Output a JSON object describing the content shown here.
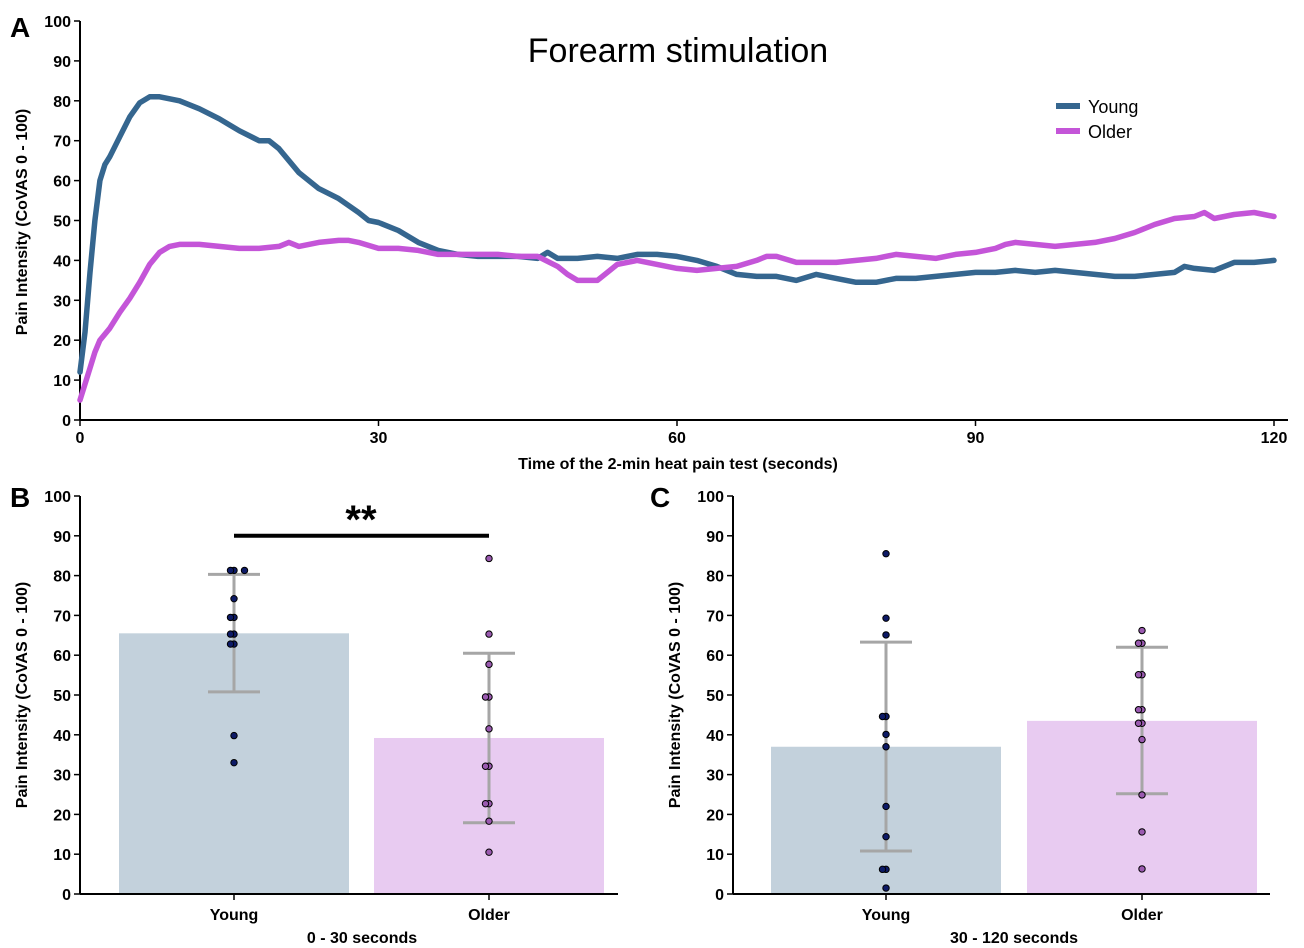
{
  "chart_data": [
    {
      "panel": "A",
      "type": "line",
      "title": "Forearm stimulation",
      "xlabel": "Time of the 2-min heat pain test (seconds)",
      "ylabel": "Pain Intensity (CoVAS 0 - 100)",
      "xlim": [
        0,
        120
      ],
      "ylim": [
        0,
        100
      ],
      "xticks": [
        0,
        30,
        60,
        90,
        120
      ],
      "yticks": [
        0,
        10,
        20,
        30,
        40,
        50,
        60,
        70,
        80,
        90,
        100
      ],
      "legend_position": "top-right",
      "grid": false,
      "series": [
        {
          "name": "Young",
          "color": "#35668f",
          "x": [
            0,
            0.5,
            1,
            1.5,
            2,
            2.5,
            3,
            4,
            5,
            6,
            7,
            8,
            9,
            10,
            12,
            14,
            16,
            18,
            19,
            20,
            22,
            24,
            26,
            28,
            29,
            30,
            32,
            34,
            36,
            38,
            40,
            42,
            44,
            46,
            47,
            48,
            50,
            52,
            54,
            56,
            58,
            60,
            62,
            64,
            66,
            68,
            70,
            72,
            74,
            76,
            78,
            80,
            82,
            84,
            86,
            88,
            90,
            92,
            94,
            96,
            98,
            100,
            102,
            104,
            106,
            108,
            110,
            111,
            112,
            114,
            116,
            118,
            120
          ],
          "y": [
            12,
            22,
            37,
            50,
            60,
            64,
            66,
            71,
            76,
            79.5,
            81,
            81,
            80.5,
            80,
            78,
            75.5,
            72.5,
            70,
            70,
            68,
            62,
            58,
            55.5,
            52,
            50,
            49.5,
            47.5,
            44.5,
            42.5,
            41.5,
            41,
            41,
            41,
            40.5,
            42,
            40.5,
            40.5,
            41,
            40.5,
            41.5,
            41.5,
            41,
            40,
            38.5,
            36.5,
            36,
            36,
            35,
            36.5,
            35.5,
            34.5,
            34.5,
            35.5,
            35.5,
            36,
            36.5,
            37,
            37,
            37.5,
            37,
            37.5,
            37,
            36.5,
            36,
            36,
            36.5,
            37,
            38.5,
            38,
            37.5,
            39.5,
            39.5,
            40
          ]
        },
        {
          "name": "Older",
          "color": "#c455d8",
          "x": [
            0,
            0.5,
            1,
            1.5,
            2,
            3,
            4,
            5,
            6,
            7,
            8,
            9,
            10,
            12,
            14,
            16,
            18,
            20,
            21,
            22,
            24,
            26,
            27,
            28,
            30,
            32,
            34,
            36,
            38,
            40,
            42,
            44,
            46,
            48,
            49,
            50,
            51,
            52,
            53,
            54,
            56,
            58,
            60,
            62,
            64,
            66,
            68,
            69,
            70,
            72,
            74,
            76,
            78,
            80,
            82,
            84,
            86,
            88,
            90,
            92,
            93,
            94,
            96,
            98,
            100,
            102,
            104,
            106,
            108,
            110,
            112,
            113,
            114,
            116,
            118,
            119,
            120
          ],
          "y": [
            5,
            9,
            13,
            17,
            20,
            23,
            27,
            30.5,
            34.5,
            39,
            42,
            43.5,
            44,
            44,
            43.5,
            43,
            43,
            43.5,
            44.5,
            43.5,
            44.5,
            45,
            45,
            44.5,
            43,
            43,
            42.5,
            41.5,
            41.5,
            41.5,
            41.5,
            41,
            41,
            38.5,
            36.5,
            35,
            35,
            35,
            37,
            39,
            40,
            39,
            38,
            37.5,
            38,
            38.5,
            40,
            41,
            41,
            39.5,
            39.5,
            39.5,
            40,
            40.5,
            41.5,
            41,
            40.5,
            41.5,
            42,
            43,
            44,
            44.5,
            44,
            43.5,
            44,
            44.5,
            45.5,
            47,
            49,
            50.5,
            51,
            52,
            50.5,
            51.5,
            52,
            51.5,
            51
          ]
        }
      ]
    },
    {
      "panel": "B",
      "type": "bar",
      "xlabel": "0 - 30 seconds",
      "ylabel": "Pain Intensity (CoVAS 0 - 100)",
      "ylim": [
        0,
        100
      ],
      "yticks": [
        0,
        10,
        20,
        30,
        40,
        50,
        60,
        70,
        80,
        90,
        100
      ],
      "categories": [
        "Young",
        "Older"
      ],
      "values": [
        65.5,
        39.2
      ],
      "error_upper": [
        80.3,
        60.5
      ],
      "error_lower": [
        50.8,
        17.9
      ],
      "colors": [
        "#c3d1dc",
        "#e8cbf1"
      ],
      "point_colors": [
        "#0d1a66",
        "#9a5ab0"
      ],
      "points": [
        [
          81.3,
          81.3,
          81.3,
          74.2,
          69.5,
          69.5,
          65.3,
          65.3,
          62.8,
          62.8,
          39.8,
          33
        ],
        [
          84.3,
          65.3,
          57.7,
          49.5,
          49.5,
          41.5,
          32.1,
          32.1,
          22.7,
          22.7,
          18.3,
          10.5
        ]
      ],
      "significance": {
        "label": "**",
        "y": 90
      }
    },
    {
      "panel": "C",
      "type": "bar",
      "xlabel": "30 - 120 seconds",
      "ylabel": "Pain Intensity (CoVAS 0 - 100)",
      "ylim": [
        0,
        100
      ],
      "yticks": [
        0,
        10,
        20,
        30,
        40,
        50,
        60,
        70,
        80,
        90,
        100
      ],
      "categories": [
        "Young",
        "Older"
      ],
      "values": [
        37,
        43.5
      ],
      "error_upper": [
        63.3,
        62
      ],
      "error_lower": [
        10.8,
        25.2
      ],
      "colors": [
        "#c3d1dc",
        "#e8cbf1"
      ],
      "point_colors": [
        "#0d1a66",
        "#9a5ab0"
      ],
      "points": [
        [
          85.5,
          69.3,
          65.1,
          44.6,
          44.6,
          40.1,
          37,
          22,
          14.4,
          6.2,
          6.2,
          1.5
        ],
        [
          66.2,
          63,
          63,
          55.1,
          55.1,
          46.3,
          46.3,
          42.9,
          42.9,
          38.8,
          24.9,
          15.6,
          6.3
        ]
      ]
    }
  ]
}
